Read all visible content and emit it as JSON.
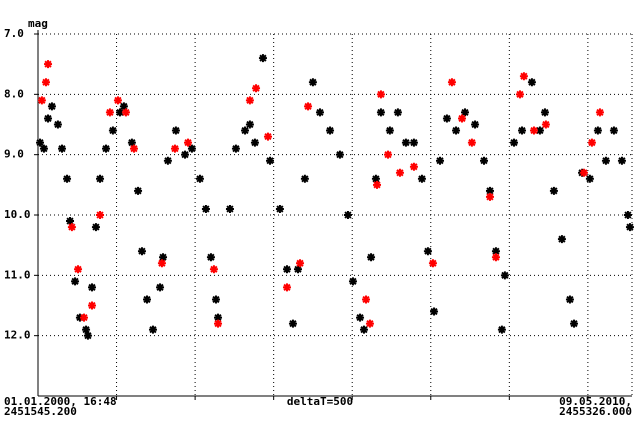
{
  "chart_data": {
    "type": "scatter",
    "y_label": "mag",
    "x_start_date": "01.01.2000, 16:48",
    "x_start_jd": "2451545.200",
    "x_end_date": "09.05.2010,",
    "x_end_jd": "2455326.000",
    "x_step_label": "deltaT=500",
    "xlim": [
      2451545.2,
      2455326.0
    ],
    "xticks": [
      2452045.2,
      2452545.2,
      2453045.2,
      2453545.2,
      2454045.2,
      2454545.2,
      2455045.2
    ],
    "ylim": [
      7,
      13
    ],
    "y_reversed": true,
    "yticks": [
      {
        "value": 7,
        "label": "7.0"
      },
      {
        "value": 8,
        "label": "8.0"
      },
      {
        "value": 9,
        "label": "9.0"
      },
      {
        "value": 10,
        "label": "10.0"
      },
      {
        "value": 11,
        "label": "11.0"
      },
      {
        "value": 12,
        "label": "12.0"
      }
    ],
    "grid": true,
    "marker": "asterisk",
    "series": [
      {
        "color": "#000000",
        "x": [
          2451558,
          2451583,
          2451609,
          2451634,
          2451672,
          2451698,
          2451730,
          2451749,
          2451781,
          2451812,
          2451851,
          2451863,
          2451889,
          2451914,
          2451940,
          2451978,
          2452022,
          2452067,
          2452092,
          2452143,
          2452182,
          2452207,
          2452239,
          2452277,
          2452322,
          2452341,
          2452372,
          2452423,
          2452481,
          2452525,
          2452576,
          2452614,
          2452646,
          2452678,
          2452691,
          2452767,
          2452805,
          2452863,
          2452894,
          2452926,
          2452977,
          2453022,
          2453085,
          2453130,
          2453168,
          2453200,
          2453244,
          2453295,
          2453340,
          2453404,
          2453467,
          2453518,
          2453550,
          2453595,
          2453620,
          2453665,
          2453696,
          2453728,
          2453785,
          2453836,
          2453887,
          2453938,
          2453989,
          2454027,
          2454066,
          2454104,
          2454148,
          2454206,
          2454263,
          2454327,
          2454384,
          2454422,
          2454460,
          2454498,
          2454517,
          2454575,
          2454626,
          2454689,
          2454740,
          2454772,
          2454829,
          2454880,
          2454931,
          2454957,
          2455008,
          2455058,
          2455109,
          2455160,
          2455211,
          2455262,
          2455300,
          2455313
        ],
        "values": [
          8.8,
          8.9,
          8.4,
          8.2,
          8.5,
          8.9,
          9.4,
          10.1,
          11.1,
          11.7,
          11.9,
          12.0,
          11.2,
          10.2,
          9.4,
          8.9,
          8.6,
          8.3,
          8.2,
          8.8,
          9.6,
          10.6,
          11.4,
          11.9,
          11.2,
          10.7,
          9.1,
          8.6,
          9.0,
          8.9,
          9.4,
          9.9,
          10.7,
          11.4,
          11.7,
          9.9,
          8.9,
          8.6,
          8.5,
          8.8,
          7.4,
          9.1,
          9.9,
          10.9,
          11.8,
          10.9,
          9.4,
          7.8,
          8.3,
          8.6,
          9.0,
          10.0,
          11.1,
          11.7,
          11.9,
          10.7,
          9.4,
          8.3,
          8.6,
          8.3,
          8.8,
          8.8,
          9.4,
          10.6,
          11.6,
          9.1,
          8.4,
          8.6,
          8.3,
          8.5,
          9.1,
          9.6,
          10.6,
          11.9,
          11.0,
          8.8,
          8.6,
          7.8,
          8.6,
          8.3,
          9.6,
          10.4,
          11.4,
          11.8,
          9.3,
          9.4,
          8.6,
          9.1,
          8.6,
          9.1,
          10.0,
          10.2
        ]
      },
      {
        "color": "#ff0000",
        "x": [
          2451570,
          2451596,
          2451609,
          2451761,
          2451800,
          2451838,
          2451889,
          2451940,
          2452003,
          2452054,
          2452105,
          2452156,
          2452334,
          2452417,
          2452500,
          2452665,
          2452691,
          2452894,
          2452933,
          2453009,
          2453130,
          2453213,
          2453264,
          2453633,
          2453658,
          2453703,
          2453728,
          2453773,
          2453849,
          2453938,
          2454059,
          2454180,
          2454244,
          2454307,
          2454422,
          2454460,
          2454613,
          2454638,
          2454702,
          2454778,
          2455020,
          2455071,
          2455122
        ],
        "values": [
          8.1,
          7.8,
          7.5,
          10.2,
          10.9,
          11.7,
          11.5,
          10.0,
          8.3,
          8.1,
          8.3,
          8.9,
          10.8,
          8.9,
          8.8,
          10.9,
          11.8,
          8.1,
          7.9,
          8.7,
          11.2,
          10.8,
          8.2,
          11.4,
          11.8,
          9.5,
          8.0,
          9.0,
          9.3,
          9.2,
          10.8,
          7.8,
          8.4,
          8.8,
          9.7,
          10.7,
          8.0,
          7.7,
          8.6,
          8.5,
          9.3,
          8.8,
          8.3
        ]
      }
    ]
  }
}
